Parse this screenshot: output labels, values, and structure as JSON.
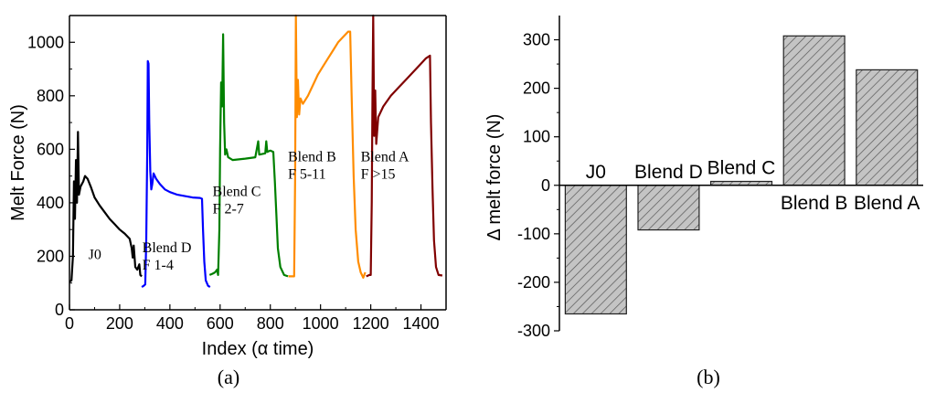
{
  "chart_data": [
    {
      "type": "line",
      "panel_label": "(a)",
      "xlabel": "Index (α time)",
      "ylabel": "Melt Force (N)",
      "xlim": [
        0,
        1500
      ],
      "ylim": [
        0,
        1100
      ],
      "xticks": [
        0,
        200,
        400,
        600,
        800,
        1000,
        1200,
        1400
      ],
      "yticks": [
        0,
        200,
        400,
        600,
        800,
        1000
      ],
      "series": [
        {
          "name": "J0",
          "label_lines": [
            "J0"
          ],
          "color": "#000000",
          "points": [
            [
              0,
              105
            ],
            [
              8,
              110
            ],
            [
              14,
              200
            ],
            [
              18,
              480
            ],
            [
              22,
              340
            ],
            [
              26,
              560
            ],
            [
              30,
              400
            ],
            [
              34,
              665
            ],
            [
              38,
              430
            ],
            [
              44,
              460
            ],
            [
              55,
              480
            ],
            [
              62,
              500
            ],
            [
              72,
              490
            ],
            [
              85,
              460
            ],
            [
              100,
              420
            ],
            [
              120,
              390
            ],
            [
              140,
              365
            ],
            [
              160,
              340
            ],
            [
              180,
              320
            ],
            [
              200,
              300
            ],
            [
              220,
              285
            ],
            [
              240,
              265
            ],
            [
              248,
              230
            ],
            [
              252,
              195
            ],
            [
              256,
              240
            ],
            [
              262,
              160
            ],
            [
              270,
              150
            ],
            [
              278,
              170
            ],
            [
              282,
              130
            ],
            [
              288,
              125
            ]
          ]
        },
        {
          "name": "Blend D",
          "label_lines": [
            "Blend D",
            "F 1-4"
          ],
          "color": "#0000ff",
          "points": [
            [
              288,
              85
            ],
            [
              296,
              90
            ],
            [
              302,
              95
            ],
            [
              306,
              260
            ],
            [
              310,
              600
            ],
            [
              312,
              930
            ],
            [
              315,
              920
            ],
            [
              318,
              700
            ],
            [
              322,
              520
            ],
            [
              326,
              450
            ],
            [
              330,
              470
            ],
            [
              335,
              510
            ],
            [
              345,
              490
            ],
            [
              360,
              470
            ],
            [
              380,
              450
            ],
            [
              400,
              440
            ],
            [
              430,
              430
            ],
            [
              460,
              425
            ],
            [
              490,
              420
            ],
            [
              520,
              418
            ],
            [
              528,
              415
            ],
            [
              532,
              300
            ],
            [
              537,
              180
            ],
            [
              543,
              110
            ],
            [
              552,
              90
            ],
            [
              560,
              85
            ]
          ]
        },
        {
          "name": "Blend C",
          "label_lines": [
            "Blend C",
            "F 2-7"
          ],
          "color": "#008000",
          "points": [
            [
              558,
              130
            ],
            [
              570,
              135
            ],
            [
              580,
              140
            ],
            [
              588,
              150
            ],
            [
              592,
              130
            ],
            [
              597,
              300
            ],
            [
              600,
              600
            ],
            [
              604,
              850
            ],
            [
              608,
              760
            ],
            [
              612,
              1030
            ],
            [
              616,
              700
            ],
            [
              620,
              580
            ],
            [
              625,
              600
            ],
            [
              632,
              570
            ],
            [
              650,
              560
            ],
            [
              700,
              565
            ],
            [
              740,
              570
            ],
            [
              752,
              630
            ],
            [
              756,
              580
            ],
            [
              780,
              585
            ],
            [
              784,
              630
            ],
            [
              788,
              590
            ],
            [
              800,
              595
            ],
            [
              812,
              590
            ],
            [
              818,
              480
            ],
            [
              824,
              360
            ],
            [
              830,
              230
            ],
            [
              840,
              160
            ],
            [
              855,
              130
            ],
            [
              870,
              125
            ]
          ]
        },
        {
          "name": "Blend B",
          "label_lines": [
            "Blend B",
            "F 5-11"
          ],
          "color": "#ff8c00",
          "points": [
            [
              872,
              125
            ],
            [
              888,
              125
            ],
            [
              895,
              125
            ],
            [
              899,
              500
            ],
            [
              902,
              1100
            ],
            [
              906,
              720
            ],
            [
              910,
              860
            ],
            [
              915,
              730
            ],
            [
              920,
              790
            ],
            [
              930,
              770
            ],
            [
              950,
              800
            ],
            [
              970,
              840
            ],
            [
              990,
              880
            ],
            [
              1010,
              910
            ],
            [
              1030,
              940
            ],
            [
              1050,
              970
            ],
            [
              1070,
              1000
            ],
            [
              1090,
              1020
            ],
            [
              1110,
              1040
            ],
            [
              1118,
              1040
            ],
            [
              1124,
              800
            ],
            [
              1132,
              500
            ],
            [
              1140,
              300
            ],
            [
              1150,
              180
            ],
            [
              1160,
              140
            ],
            [
              1170,
              120
            ],
            [
              1178,
              140
            ]
          ]
        },
        {
          "name": "Blend A",
          "label_lines": [
            "Blend A",
            "F >15"
          ],
          "color": "#800000",
          "points": [
            [
              1182,
              125
            ],
            [
              1195,
              130
            ],
            [
              1200,
              130
            ],
            [
              1204,
              400
            ],
            [
              1207,
              800
            ],
            [
              1210,
              1100
            ],
            [
              1214,
              650
            ],
            [
              1218,
              820
            ],
            [
              1222,
              620
            ],
            [
              1230,
              720
            ],
            [
              1250,
              760
            ],
            [
              1280,
              800
            ],
            [
              1310,
              830
            ],
            [
              1340,
              860
            ],
            [
              1370,
              890
            ],
            [
              1400,
              920
            ],
            [
              1420,
              940
            ],
            [
              1436,
              950
            ],
            [
              1440,
              700
            ],
            [
              1446,
              450
            ],
            [
              1452,
              260
            ],
            [
              1460,
              160
            ],
            [
              1470,
              130
            ],
            [
              1485,
              128
            ]
          ]
        }
      ]
    },
    {
      "type": "bar",
      "panel_label": "(b)",
      "ylabel": "Δ melt force (N)",
      "ylim": [
        -300,
        350
      ],
      "yticks": [
        -300,
        -200,
        -100,
        0,
        100,
        200,
        300
      ],
      "categories": [
        "J0",
        "Blend D",
        "Blend C",
        "Blend B",
        "Blend A"
      ],
      "values": [
        -265,
        -92,
        8,
        308,
        238
      ],
      "bar_color": "#c4c4c4",
      "hatch": "diagonal"
    }
  ]
}
